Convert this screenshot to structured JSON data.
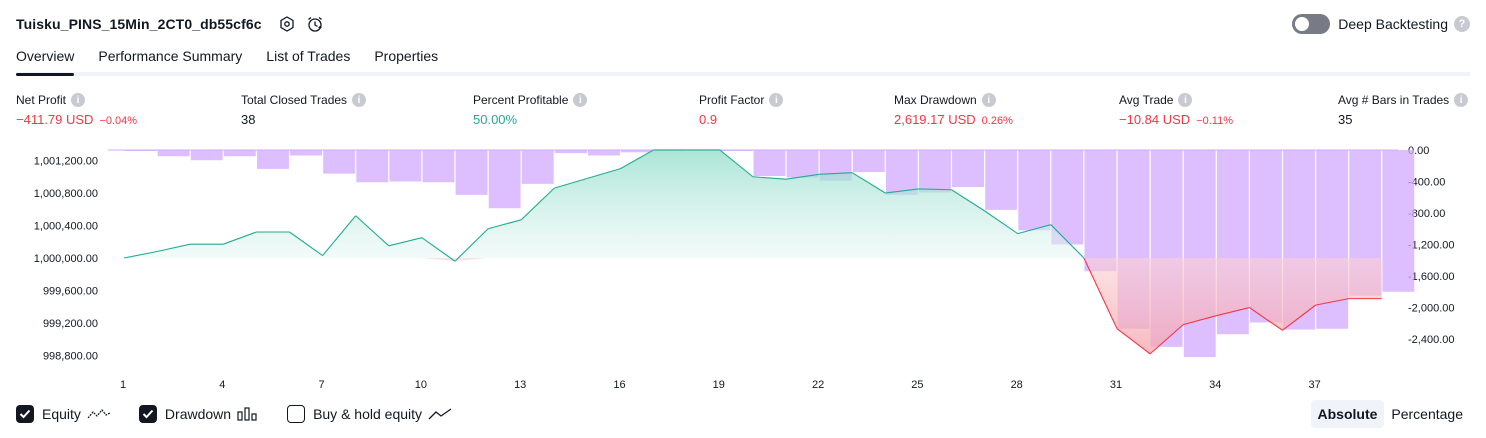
{
  "header": {
    "title": "Tuisku_PINS_15Min_2CT0_db55cf6c",
    "settings_icon": "settings-hexagon-icon",
    "alert_icon": "alarm-clock-icon"
  },
  "deep_backtesting": {
    "label": "Deep Backtesting",
    "enabled": false,
    "help": "?"
  },
  "tabs": [
    {
      "label": "Overview",
      "active": true
    },
    {
      "label": "Performance Summary",
      "active": false
    },
    {
      "label": "List of Trades",
      "active": false
    },
    {
      "label": "Properties",
      "active": false
    }
  ],
  "metrics": {
    "net_profit": {
      "label": "Net Profit",
      "value": "−411.79 USD",
      "pct": "−0.04%"
    },
    "total_closed_trades": {
      "label": "Total Closed Trades",
      "value": "38"
    },
    "percent_profitable": {
      "label": "Percent Profitable",
      "value": "50.00%"
    },
    "profit_factor": {
      "label": "Profit Factor",
      "value": "0.9"
    },
    "max_drawdown": {
      "label": "Max Drawdown",
      "value": "2,619.17 USD",
      "pct": "0.26%"
    },
    "avg_trade": {
      "label": "Avg Trade",
      "value": "−10.84 USD",
      "pct": "−0.11%"
    },
    "avg_bars": {
      "label": "Avg # Bars in Trades",
      "value": "35"
    },
    "info_glyph": "i"
  },
  "chart_data": {
    "type": "area",
    "baseline": 1000000,
    "left_axis": {
      "ticks": [
        1001200,
        1000800,
        1000400,
        1000000,
        999600,
        999200,
        998800
      ],
      "tick_labels": [
        "1,001,200.00",
        "1,000,800.00",
        "1,000,400.00",
        "1,000,000.00",
        "999,600.00",
        "999,200.00",
        "998,800.00"
      ]
    },
    "right_axis": {
      "ticks": [
        0,
        -400,
        -800,
        -1200,
        -1600,
        -2000,
        -2400
      ],
      "tick_labels": [
        "0.00",
        "-400.00",
        "-800.00",
        "-1,200.00",
        "-1,600.00",
        "-2,000.00",
        "-2,400.00"
      ]
    },
    "x_ticks": [
      1,
      4,
      7,
      10,
      13,
      16,
      19,
      22,
      25,
      28,
      31,
      34,
      37
    ],
    "x_tick_labels": [
      "1",
      "4",
      "7",
      "10",
      "13",
      "16",
      "19",
      "22",
      "25",
      "28",
      "31",
      "34",
      "37"
    ],
    "series": [
      {
        "name": "Equity",
        "x": [
          1,
          2,
          3,
          4,
          5,
          6,
          7,
          8,
          9,
          10,
          11,
          12,
          13,
          14,
          15,
          16,
          17,
          18,
          19,
          20,
          21,
          22,
          23,
          24,
          25,
          26,
          27,
          28,
          29,
          30,
          31,
          32,
          33,
          34,
          35,
          36,
          37,
          38,
          39
        ],
        "values": [
          1000000,
          1000080,
          1000170,
          1000170,
          1000320,
          1000320,
          1000030,
          1000520,
          1000150,
          1000250,
          999960,
          1000360,
          1000470,
          1000860,
          1000980,
          1001100,
          1001330,
          1001330,
          1001330,
          1001000,
          1000970,
          1001030,
          1001050,
          1000800,
          1000850,
          1000840,
          1000580,
          1000300,
          1000410,
          1000000,
          999130,
          998820,
          999180,
          999290,
          999390,
          999110,
          999420,
          999500,
          999500
        ]
      },
      {
        "name": "Drawdown",
        "x": [
          1,
          2,
          3,
          4,
          5,
          6,
          7,
          8,
          9,
          10,
          11,
          12,
          13,
          14,
          15,
          16,
          17,
          18,
          19,
          20,
          21,
          22,
          23,
          24,
          25,
          26,
          27,
          28,
          29,
          30,
          31,
          32,
          33,
          34,
          35,
          36,
          37,
          38,
          39
        ],
        "values": [
          0,
          -80,
          -130,
          -80,
          -240,
          -70,
          -300,
          -410,
          -400,
          -410,
          -570,
          -740,
          -430,
          -40,
          -70,
          -30,
          0,
          0,
          0,
          -330,
          -350,
          -390,
          -280,
          -570,
          -540,
          -470,
          -760,
          -1020,
          -1200,
          -1540,
          -2270,
          -2500,
          -2630,
          -2340,
          -2190,
          -2280,
          -2270,
          -1850,
          -1800
        ]
      },
      {
        "name": "Buy & hold equity",
        "values": []
      }
    ]
  },
  "legend": {
    "equity": {
      "label": "Equity",
      "checked": true
    },
    "drawdown": {
      "label": "Drawdown",
      "checked": true
    },
    "buy_hold": {
      "label": "Buy & hold equity",
      "checked": false
    }
  },
  "mode": {
    "absolute": "Absolute",
    "percentage": "Percentage",
    "selected": "absolute"
  },
  "colors": {
    "equity_up": "#22ab94",
    "equity_down": "#f23645",
    "equity_fill": "#ace5dc",
    "drawdown_bar": "#d1a8ff",
    "negative": "#f23645",
    "positive": "#22ab94"
  }
}
